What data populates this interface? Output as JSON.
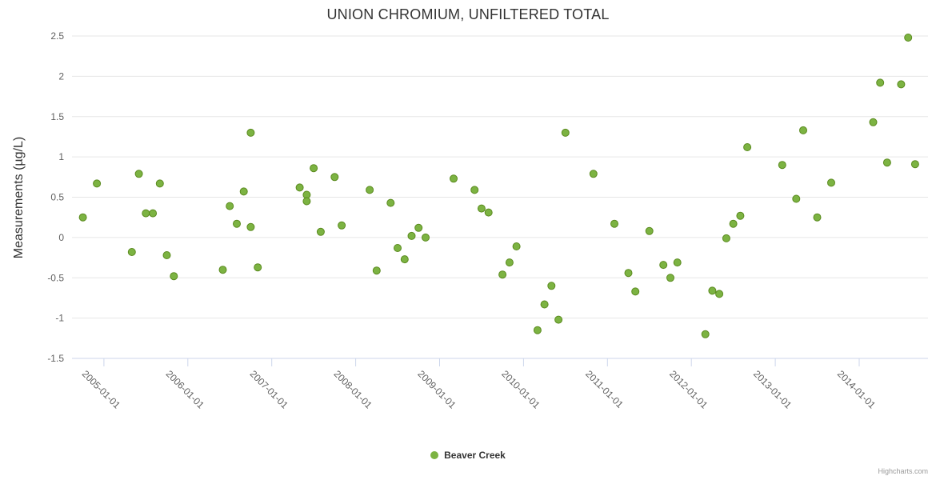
{
  "credits": "Highcharts.com",
  "chart_data": {
    "type": "scatter",
    "title": "UNION CHROMIUM, UNFILTERED TOTAL",
    "xlabel": "",
    "ylabel": "Measurements (µg/L)",
    "ylim": [
      -1.5,
      2.5
    ],
    "y_ticks": [
      2.5,
      2,
      1.5,
      1,
      0.5,
      0,
      -0.5,
      -1,
      -1.5
    ],
    "x_ticks": [
      "2005-01-01",
      "2006-01-01",
      "2007-01-01",
      "2008-01-01",
      "2009-01-01",
      "2010-01-01",
      "2011-01-01",
      "2012-01-01",
      "2013-01-01",
      "2014-01-01"
    ],
    "xlim_years": [
      2004.62,
      2014.82
    ],
    "grid": "horizontal",
    "legend_position": "bottom-center",
    "colors": {
      "marker": "#7cb342",
      "marker_stroke": "#5a8a1e",
      "grid": "#e6e6e6",
      "axis_line": "#ccd6eb",
      "tick_label": "#606060",
      "title": "#333333"
    },
    "series": [
      {
        "name": "Beaver Creek",
        "color": "#7cb342",
        "stroke": "#5a8a1e",
        "points": [
          {
            "date": "2004-10",
            "value": 0.25
          },
          {
            "date": "2004-12",
            "value": 0.67
          },
          {
            "date": "2005-05",
            "value": -0.18
          },
          {
            "date": "2005-06",
            "value": 0.79
          },
          {
            "date": "2005-07",
            "value": 0.3
          },
          {
            "date": "2005-08",
            "value": 0.3
          },
          {
            "date": "2005-09",
            "value": 0.67
          },
          {
            "date": "2005-10",
            "value": -0.22
          },
          {
            "date": "2005-11",
            "value": -0.48
          },
          {
            "date": "2006-06",
            "value": -0.4
          },
          {
            "date": "2006-07",
            "value": 0.39
          },
          {
            "date": "2006-08",
            "value": 0.17
          },
          {
            "date": "2006-09",
            "value": 0.57
          },
          {
            "date": "2006-10",
            "value": 1.3
          },
          {
            "date": "2006-10",
            "value": 0.13
          },
          {
            "date": "2006-11",
            "value": -0.37
          },
          {
            "date": "2007-05",
            "value": 0.62
          },
          {
            "date": "2007-06",
            "value": 0.53
          },
          {
            "date": "2007-06",
            "value": 0.45
          },
          {
            "date": "2007-07",
            "value": 0.86
          },
          {
            "date": "2007-08",
            "value": 0.07
          },
          {
            "date": "2007-10",
            "value": 0.75
          },
          {
            "date": "2007-11",
            "value": 0.15
          },
          {
            "date": "2008-03",
            "value": 0.59
          },
          {
            "date": "2008-04",
            "value": -0.41
          },
          {
            "date": "2008-06",
            "value": 0.43
          },
          {
            "date": "2008-07",
            "value": -0.13
          },
          {
            "date": "2008-08",
            "value": -0.27
          },
          {
            "date": "2008-09",
            "value": 0.02
          },
          {
            "date": "2008-10",
            "value": 0.12
          },
          {
            "date": "2008-11",
            "value": 0.0
          },
          {
            "date": "2009-03",
            "value": 0.73
          },
          {
            "date": "2009-06",
            "value": 0.59
          },
          {
            "date": "2009-07",
            "value": 0.36
          },
          {
            "date": "2009-08",
            "value": 0.31
          },
          {
            "date": "2009-10",
            "value": -0.46
          },
          {
            "date": "2009-11",
            "value": -0.31
          },
          {
            "date": "2009-12",
            "value": -0.11
          },
          {
            "date": "2010-03",
            "value": -1.15
          },
          {
            "date": "2010-04",
            "value": -0.83
          },
          {
            "date": "2010-05",
            "value": -0.6
          },
          {
            "date": "2010-06",
            "value": -1.02
          },
          {
            "date": "2010-07",
            "value": 1.3
          },
          {
            "date": "2010-11",
            "value": 0.79
          },
          {
            "date": "2011-02",
            "value": 0.17
          },
          {
            "date": "2011-04",
            "value": -0.44
          },
          {
            "date": "2011-05",
            "value": -0.67
          },
          {
            "date": "2011-07",
            "value": 0.08
          },
          {
            "date": "2011-09",
            "value": -0.34
          },
          {
            "date": "2011-10",
            "value": -0.5
          },
          {
            "date": "2011-11",
            "value": -0.31
          },
          {
            "date": "2012-03",
            "value": -1.2
          },
          {
            "date": "2012-04",
            "value": -0.66
          },
          {
            "date": "2012-05",
            "value": -0.7
          },
          {
            "date": "2012-06",
            "value": -0.01
          },
          {
            "date": "2012-07",
            "value": 0.17
          },
          {
            "date": "2012-08",
            "value": 0.27
          },
          {
            "date": "2012-09",
            "value": 1.12
          },
          {
            "date": "2013-02",
            "value": 0.9
          },
          {
            "date": "2013-04",
            "value": 0.48
          },
          {
            "date": "2013-05",
            "value": 1.33
          },
          {
            "date": "2013-07",
            "value": 0.25
          },
          {
            "date": "2013-09",
            "value": 0.68
          },
          {
            "date": "2014-03",
            "value": 1.43
          },
          {
            "date": "2014-04",
            "value": 1.92
          },
          {
            "date": "2014-05",
            "value": 0.93
          },
          {
            "date": "2014-07",
            "value": 1.9
          },
          {
            "date": "2014-08",
            "value": 2.48
          },
          {
            "date": "2014-09",
            "value": 0.91
          }
        ]
      }
    ]
  }
}
